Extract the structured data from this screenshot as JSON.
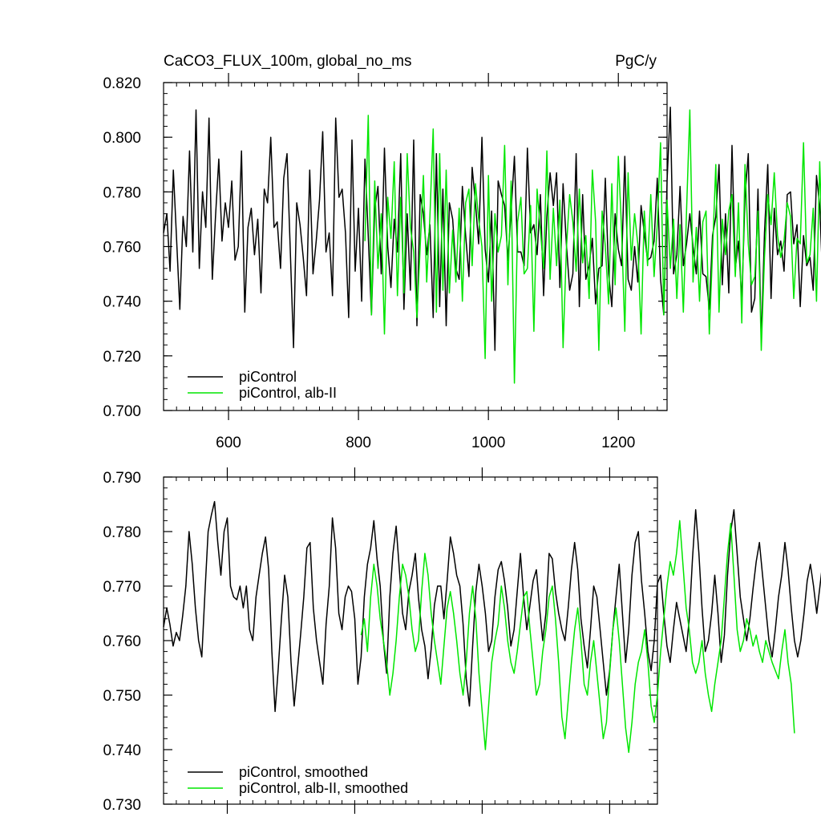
{
  "header": {
    "title": "CaCO3_FLUX_100m, global_no_ms",
    "units": "PgC/y"
  },
  "colors": {
    "control": "#000000",
    "alb": "#00e600",
    "frame": "#000000"
  },
  "chart_data": [
    {
      "type": "line",
      "xlim": [
        500,
        1275
      ],
      "ylim": [
        0.7,
        0.82
      ],
      "xticks": [
        600,
        800,
        1000,
        1200
      ],
      "xtick_labels": [
        "600",
        "800",
        "1000",
        "1200"
      ],
      "yticks": [
        0.7,
        0.72,
        0.74,
        0.76,
        0.78,
        0.8,
        0.82
      ],
      "ytick_labels": [
        "0.700",
        "0.720",
        "0.740",
        "0.760",
        "0.780",
        "0.800",
        "0.820"
      ],
      "legend_position": "bottom-left",
      "grid": false,
      "series": [
        {
          "name": "piControl",
          "color": "#000000",
          "x_start": 500,
          "x_step": 5,
          "values": [
            0.765,
            0.772,
            0.751,
            0.788,
            0.763,
            0.737,
            0.771,
            0.76,
            0.795,
            0.758,
            0.81,
            0.752,
            0.78,
            0.767,
            0.807,
            0.748,
            0.771,
            0.792,
            0.762,
            0.776,
            0.767,
            0.784,
            0.755,
            0.76,
            0.795,
            0.736,
            0.767,
            0.774,
            0.757,
            0.77,
            0.743,
            0.781,
            0.776,
            0.8,
            0.767,
            0.769,
            0.752,
            0.785,
            0.794,
            0.759,
            0.723,
            0.776,
            0.768,
            0.756,
            0.742,
            0.788,
            0.75,
            0.762,
            0.777,
            0.802,
            0.758,
            0.765,
            0.742,
            0.807,
            0.778,
            0.781,
            0.765,
            0.734,
            0.799,
            0.751,
            0.774,
            0.74,
            0.792,
            0.764,
            0.735,
            0.774,
            0.782,
            0.75,
            0.796,
            0.76,
            0.745,
            0.77,
            0.758,
            0.794,
            0.737,
            0.772,
            0.744,
            0.799,
            0.731,
            0.779,
            0.772,
            0.757,
            0.768,
            0.734,
            0.794,
            0.738,
            0.781,
            0.731,
            0.776,
            0.77,
            0.752,
            0.748,
            0.782,
            0.764,
            0.749,
            0.789,
            0.776,
            0.761,
            0.8,
            0.759,
            0.747,
            0.773,
            0.722,
            0.784,
            0.779,
            0.775,
            0.755,
            0.773,
            0.793,
            0.758,
            0.758,
            0.753,
            0.796,
            0.765,
            0.768,
            0.757,
            0.779,
            0.742,
            0.771,
            0.787,
            0.775,
            0.787,
            0.745,
            0.783,
            0.761,
            0.744,
            0.75,
            0.794,
            0.738,
            0.779,
            0.748,
            0.753,
            0.763,
            0.739,
            0.752,
            0.753,
            0.785,
            0.75,
            0.738,
            0.772,
            0.759,
            0.753,
            0.793,
            0.748,
            0.744,
            0.76,
            0.747,
            0.775,
            0.765,
            0.755,
            0.756,
            0.762,
            0.785,
            0.748,
            0.735,
            0.784,
            0.811,
            0.75,
            0.757,
            0.782,
            0.753,
            0.761,
            0.772,
            0.76,
            0.75,
            0.773,
            0.75,
            0.749,
            0.737,
            0.764,
            0.771,
            0.79,
            0.746,
            0.772,
            0.743,
            0.797,
            0.752,
            0.762,
            0.74,
            0.778,
            0.794,
            0.736,
            0.741,
            0.781,
            0.725,
            0.765,
            0.79,
            0.741,
            0.774,
            0.757,
            0.762,
            0.751,
            0.779,
            0.78,
            0.761,
            0.768,
            0.738,
            0.764,
            0.753,
            0.756,
            0.744,
            0.786,
            0.775,
            0.745,
            0.75,
            0.78,
            0.716,
            0.753,
            0.767,
            0.759,
            0.764,
            0.781,
            0.738,
            0.765,
            0.755,
            0.761,
            0.75,
            0.787,
            0.767,
            0.73,
            0.782,
            0.748,
            0.759,
            0.743,
            0.776,
            0.762,
            0.765,
            0.757,
            0.749,
            0.788,
            0.741,
            0.758,
            0.763,
            0.781,
            0.783,
            0.746,
            0.79,
            0.764,
            0.76,
            0.738,
            0.785,
            0.761,
            0.756,
            0.759,
            0.751,
            0.784,
            0.758,
            0.745,
            0.762,
            0.766,
            0.76
          ]
        },
        {
          "name": "piControl, alb-II",
          "color": "#00e600",
          "x_start": 810,
          "x_step": 5,
          "values": [
            0.762,
            0.808,
            0.735,
            0.784,
            0.752,
            0.772,
            0.728,
            0.778,
            0.763,
            0.791,
            0.742,
            0.778,
            0.743,
            0.794,
            0.767,
            0.758,
            0.734,
            0.76,
            0.786,
            0.747,
            0.771,
            0.803,
            0.736,
            0.794,
            0.744,
            0.788,
            0.743,
            0.766,
            0.747,
            0.774,
            0.74,
            0.776,
            0.781,
            0.753,
            0.783,
            0.77,
            0.76,
            0.719,
            0.786,
            0.74,
            0.772,
            0.758,
            0.764,
            0.797,
            0.746,
            0.784,
            0.71,
            0.769,
            0.778,
            0.75,
            0.752,
            0.775,
            0.729,
            0.781,
            0.766,
            0.752,
            0.795,
            0.748,
            0.774,
            0.753,
            0.777,
            0.723,
            0.759,
            0.779,
            0.769,
            0.751,
            0.781,
            0.754,
            0.764,
            0.741,
            0.788,
            0.769,
            0.722,
            0.773,
            0.76,
            0.739,
            0.783,
            0.746,
            0.793,
            0.766,
            0.729,
            0.787,
            0.755,
            0.772,
            0.761,
            0.728,
            0.773,
            0.753,
            0.779,
            0.749,
            0.768,
            0.798,
            0.735,
            0.777,
            0.752,
            0.77,
            0.741,
            0.768,
            0.736,
            0.773,
            0.81,
            0.747,
            0.767,
            0.74,
            0.769,
            0.773,
            0.728,
            0.758,
            0.79,
            0.736,
            0.77,
            0.757,
            0.773,
            0.779,
            0.749,
            0.776,
            0.732,
            0.79,
            0.761,
            0.746,
            0.749,
            0.773,
            0.722,
            0.756,
            0.779,
            0.768,
            0.787,
            0.764,
            0.756,
            0.762,
            0.776,
            0.771,
            0.741,
            0.763,
            0.761,
            0.798,
            0.754,
            0.757,
            0.774,
            0.74,
            0.791,
            0.751,
            0.767,
            0.725,
            0.77,
            0.755,
            0.76,
            0.742,
            0.772,
            0.736
          ]
        }
      ]
    },
    {
      "type": "line",
      "xlim": [
        500,
        1275
      ],
      "ylim": [
        0.73,
        0.79
      ],
      "xticks": [
        600,
        800,
        1000,
        1200
      ],
      "xtick_labels": [],
      "yticks": [
        0.73,
        0.74,
        0.75,
        0.76,
        0.77,
        0.78,
        0.79
      ],
      "ytick_labels": [
        "0.730",
        "0.740",
        "0.750",
        "0.760",
        "0.770",
        "0.780",
        "0.790"
      ],
      "legend_position": "bottom-left",
      "grid": false,
      "series": [
        {
          "name": "piControl, smoothed",
          "color": "#000000",
          "x_start": 500,
          "x_step": 5,
          "values": [
            0.7625,
            0.766,
            0.763,
            0.759,
            0.7615,
            0.76,
            0.7645,
            0.77,
            0.78,
            0.774,
            0.766,
            0.76,
            0.757,
            0.769,
            0.78,
            0.783,
            0.7855,
            0.778,
            0.772,
            0.78,
            0.7825,
            0.77,
            0.768,
            0.7675,
            0.77,
            0.766,
            0.77,
            0.762,
            0.76,
            0.768,
            0.772,
            0.776,
            0.779,
            0.773,
            0.758,
            0.747,
            0.755,
            0.764,
            0.772,
            0.768,
            0.756,
            0.748,
            0.7545,
            0.761,
            0.768,
            0.777,
            0.778,
            0.766,
            0.76,
            0.756,
            0.752,
            0.763,
            0.77,
            0.7825,
            0.777,
            0.765,
            0.762,
            0.768,
            0.77,
            0.769,
            0.764,
            0.752,
            0.757,
            0.768,
            0.774,
            0.777,
            0.782,
            0.775,
            0.77,
            0.76,
            0.754,
            0.768,
            0.776,
            0.781,
            0.773,
            0.765,
            0.762,
            0.769,
            0.772,
            0.776,
            0.768,
            0.762,
            0.759,
            0.753,
            0.7585,
            0.7665,
            0.77,
            0.77,
            0.764,
            0.771,
            0.779,
            0.776,
            0.772,
            0.77,
            0.763,
            0.753,
            0.748,
            0.759,
            0.769,
            0.774,
            0.77,
            0.765,
            0.758,
            0.76,
            0.768,
            0.773,
            0.7745,
            0.771,
            0.766,
            0.759,
            0.762,
            0.769,
            0.776,
            0.768,
            0.762,
            0.7665,
            0.771,
            0.773,
            0.766,
            0.76,
            0.765,
            0.776,
            0.775,
            0.769,
            0.765,
            0.762,
            0.76,
            0.766,
            0.773,
            0.778,
            0.773,
            0.764,
            0.759,
            0.755,
            0.762,
            0.77,
            0.768,
            0.762,
            0.756,
            0.75,
            0.7545,
            0.762,
            0.768,
            0.774,
            0.765,
            0.756,
            0.762,
            0.772,
            0.778,
            0.78,
            0.771,
            0.765,
            0.758,
            0.7545,
            0.76,
            0.7705,
            0.772,
            0.765,
            0.759,
            0.756,
            0.762,
            0.767,
            0.764,
            0.761,
            0.758,
            0.764,
            0.775,
            0.784,
            0.776,
            0.766,
            0.758,
            0.76,
            0.765,
            0.772,
            0.765,
            0.756,
            0.761,
            0.772,
            0.78,
            0.784,
            0.776,
            0.768,
            0.764,
            0.76,
            0.764,
            0.7695,
            0.7745,
            0.778,
            0.772,
            0.766,
            0.76,
            0.757,
            0.762,
            0.768,
            0.772,
            0.778,
            0.773,
            0.766,
            0.76,
            0.757,
            0.76,
            0.765,
            0.771,
            0.774,
            0.77,
            0.765,
            0.77,
            0.775,
            0.774,
            0.77,
            0.764,
            0.76,
            0.765,
            0.772,
            0.77,
            0.765,
            0.76,
            0.764,
            0.77,
            0.769,
            0.765,
            0.76,
            0.756,
            0.76,
            0.7665,
            0.764,
            0.761,
            0.757,
            0.76,
            0.762
          ]
        },
        {
          "name": "piControl, alb-II, smoothed",
          "color": "#00e600",
          "x_start": 810,
          "x_step": 5,
          "values": [
            0.761,
            0.764,
            0.758,
            0.768,
            0.774,
            0.77,
            0.764,
            0.76,
            0.756,
            0.75,
            0.754,
            0.76,
            0.768,
            0.774,
            0.772,
            0.768,
            0.762,
            0.758,
            0.76,
            0.769,
            0.776,
            0.772,
            0.765,
            0.76,
            0.756,
            0.752,
            0.759,
            0.766,
            0.769,
            0.765,
            0.76,
            0.754,
            0.75,
            0.756,
            0.765,
            0.77,
            0.764,
            0.754,
            0.747,
            0.74,
            0.748,
            0.756,
            0.76,
            0.763,
            0.77,
            0.766,
            0.76,
            0.756,
            0.754,
            0.758,
            0.763,
            0.768,
            0.769,
            0.762,
            0.756,
            0.75,
            0.752,
            0.758,
            0.762,
            0.768,
            0.77,
            0.764,
            0.756,
            0.746,
            0.742,
            0.749,
            0.756,
            0.762,
            0.766,
            0.76,
            0.752,
            0.75,
            0.756,
            0.76,
            0.754,
            0.748,
            0.742,
            0.745,
            0.754,
            0.762,
            0.766,
            0.76,
            0.752,
            0.744,
            0.7395,
            0.745,
            0.752,
            0.756,
            0.758,
            0.762,
            0.756,
            0.748,
            0.745,
            0.75,
            0.758,
            0.764,
            0.77,
            0.7745,
            0.772,
            0.776,
            0.782,
            0.774,
            0.766,
            0.762,
            0.756,
            0.754,
            0.756,
            0.76,
            0.754,
            0.75,
            0.747,
            0.752,
            0.756,
            0.76,
            0.768,
            0.776,
            0.7815,
            0.772,
            0.762,
            0.758,
            0.76,
            0.764,
            0.762,
            0.759,
            0.761,
            0.758,
            0.756,
            0.76,
            0.758,
            0.756,
            0.7545,
            0.753,
            0.758,
            0.762,
            0.756,
            0.752,
            0.743
          ]
        }
      ]
    }
  ],
  "legends": [
    {
      "items": [
        {
          "label": "piControl",
          "color": "#000000"
        },
        {
          "label": "piControl, alb-II",
          "color": "#00e600"
        }
      ]
    },
    {
      "items": [
        {
          "label": "piControl, smoothed",
          "color": "#000000"
        },
        {
          "label": "piControl, alb-II, smoothed",
          "color": "#00e600"
        }
      ]
    }
  ]
}
